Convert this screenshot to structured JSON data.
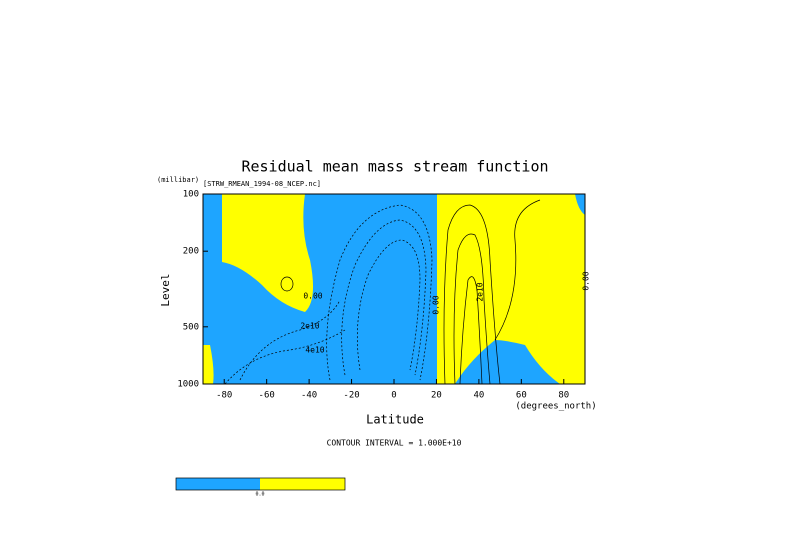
{
  "chart_data": {
    "type": "contour",
    "title": "Residual mean mass stream function",
    "subtitle": "[STRW_RMEAN_1994-08_NCEP.nc]",
    "x_label": "Latitude",
    "x_units": "(degrees_north)",
    "y_label": "Level",
    "y_units": "(millibar)",
    "xlim": [
      -90,
      90
    ],
    "xticks": [
      -80,
      -60,
      -40,
      -20,
      0,
      20,
      40,
      60,
      80
    ],
    "ylim": [
      1000,
      100
    ],
    "yticks": [
      100,
      200,
      500,
      1000
    ],
    "y_scale": "log",
    "contour_labels": [
      "0.00",
      "2e10",
      "4e10",
      "2e10",
      "0.00",
      "0.00"
    ],
    "footnote": "CONTOUR INTERVAL = 1.000E+10",
    "colors": [
      "#1ea5ff",
      "#ffff00"
    ],
    "colorbar_labels": [
      "0.0"
    ]
  }
}
